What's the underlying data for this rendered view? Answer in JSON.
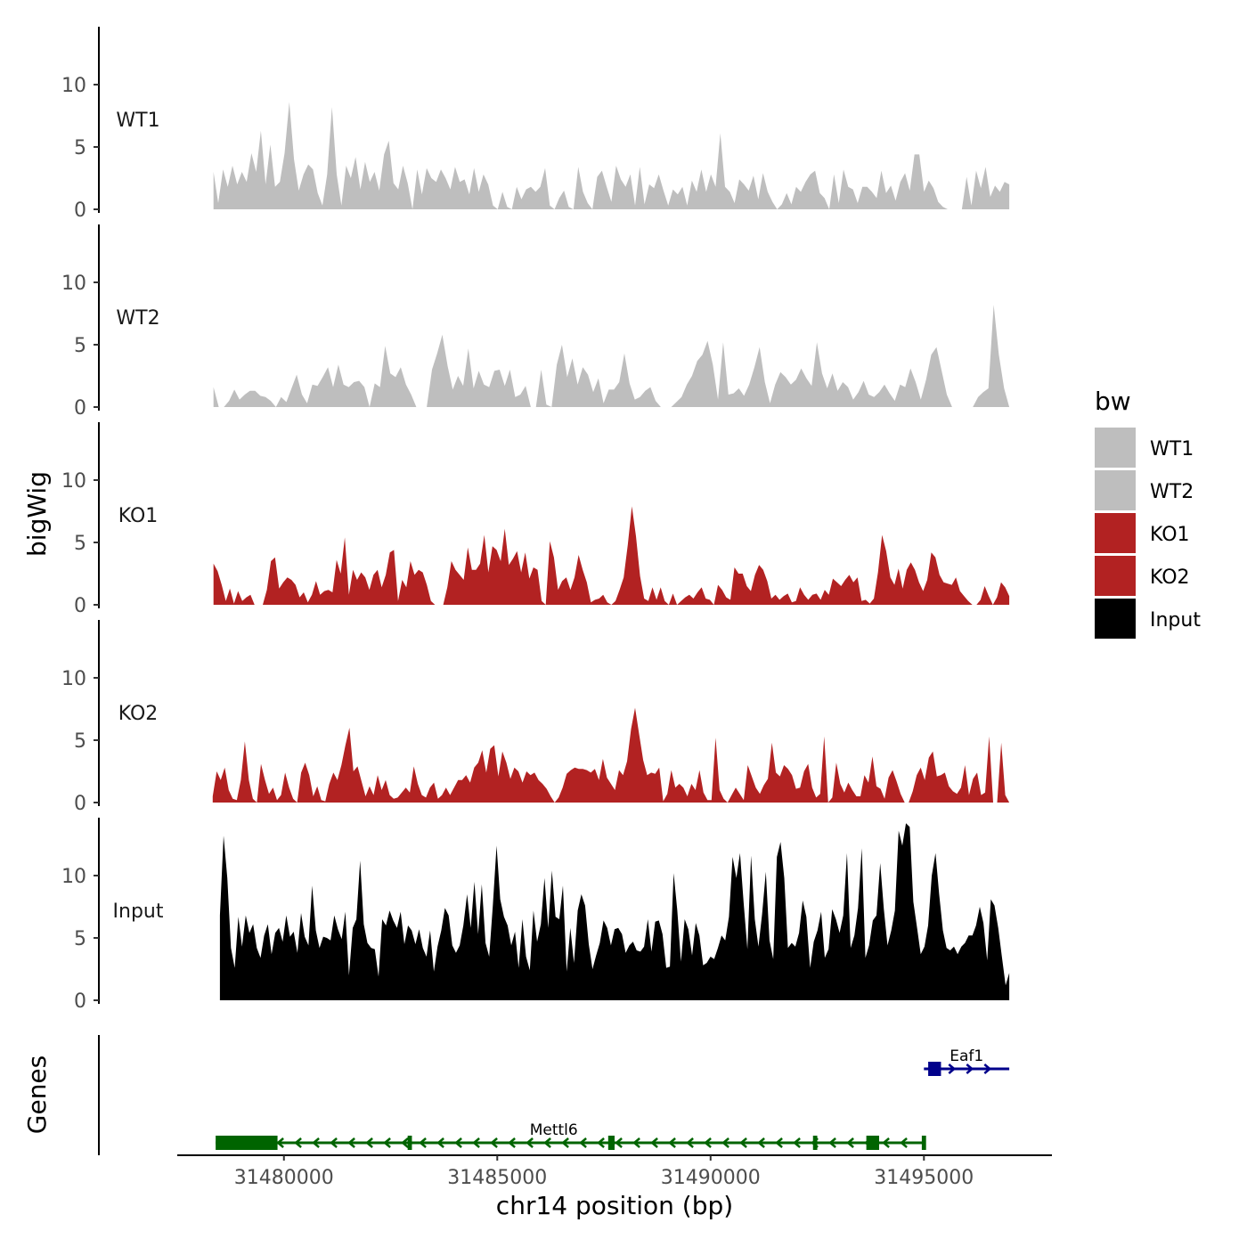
{
  "chart_data": {
    "type": "area",
    "xlabel": "chr14 position (bp)",
    "ylabel": "bigWig",
    "gene_panel_label": "Genes",
    "xlim": [
      31477500,
      31498000
    ],
    "x_ticks": [
      31480000,
      31485000,
      31490000,
      31495000
    ],
    "x_tick_labels": [
      "31480000",
      "31485000",
      "31490000",
      "31495000"
    ],
    "ylim": [
      0,
      14.5
    ],
    "y_ticks": [
      0,
      5,
      10
    ],
    "y_tick_labels": [
      "0",
      "5",
      "10"
    ],
    "legend": {
      "title": "bw",
      "position": "right",
      "entries": [
        {
          "label": "WT1",
          "color": "#bebebe"
        },
        {
          "label": "WT2",
          "color": "#bebebe"
        },
        {
          "label": "KO1",
          "color": "#b22222"
        },
        {
          "label": "KO2",
          "color": "#b22222"
        },
        {
          "label": "Input",
          "color": "#000000"
        }
      ]
    },
    "tracks": [
      {
        "name": "WT1",
        "color": "#bebebe",
        "x_start": 31478350,
        "x_end": 31497000,
        "values": [
          3,
          0.5,
          3.2,
          1.8,
          3.5,
          2,
          3,
          2.2,
          4.5,
          3,
          6.3,
          2,
          5.2,
          1.8,
          2.2,
          4.5,
          8.6,
          4,
          1.5,
          2.8,
          3.6,
          3.2,
          1.3,
          0.3,
          2.8,
          8.2,
          2.8,
          0.3,
          3.5,
          2.5,
          4.2,
          1.6,
          3.8,
          2.2,
          3,
          1.5,
          4.4,
          5.5,
          2.1,
          1.6,
          3.5,
          2.1,
          0,
          3.2,
          1.2,
          3.3,
          2.5,
          2.2,
          3.2,
          2.5,
          1.6,
          3.4,
          2.2,
          2.4,
          1.2,
          3.3,
          1.4,
          2.8,
          2,
          0.3,
          0,
          1.4,
          0.2,
          0,
          1.8,
          0.8,
          1.6,
          1.8,
          1.4,
          1.8,
          3.3,
          0.3,
          0,
          0.9,
          1.5,
          0.2,
          0,
          3.4,
          1.4,
          0.5,
          0,
          2.6,
          3.1,
          1.8,
          0.6,
          3.5,
          2.4,
          1.8,
          2.8,
          0.3,
          3.4,
          0.4,
          2,
          1.7,
          2.8,
          1.5,
          0.3,
          1.6,
          1.2,
          1.8,
          0.3,
          2.3,
          1.4,
          3.2,
          1.4,
          2.8,
          1.8,
          6.1,
          1.8,
          1.4,
          0.5,
          2.4,
          2,
          1.5,
          2.7,
          0.8,
          2.9,
          1.4,
          0.6,
          0,
          0.4,
          1.3,
          0.4,
          1.8,
          1.4,
          2.2,
          2.8,
          3.1,
          1.3,
          0.9,
          0,
          2.8,
          0.5,
          3.2,
          1.8,
          1.6,
          0.5,
          1.8,
          1.8,
          1.4,
          0.9,
          3.1,
          1.3,
          1.9,
          0.7,
          2.2,
          2.9,
          1.5,
          4.4,
          4.4,
          1.4,
          2.3,
          1.7,
          0.6,
          0.2,
          0,
          0,
          0,
          0,
          2.6,
          0.3,
          3.1,
          1.7,
          3.4,
          1,
          1.9,
          1.4,
          2.2,
          2
        ]
      },
      {
        "name": "WT2",
        "color": "#bebebe",
        "x_start": 31478350,
        "x_end": 31497000,
        "values": [
          1.6,
          0,
          0,
          0.5,
          1.4,
          0.6,
          1,
          1.3,
          1.3,
          0.9,
          0.8,
          0.5,
          0,
          0.8,
          0.4,
          1.5,
          2.6,
          1,
          0.3,
          1.8,
          1.7,
          2.4,
          3.2,
          1.6,
          3.4,
          1.8,
          1.6,
          2,
          2.1,
          1.6,
          0,
          1.9,
          1.6,
          4.9,
          2.7,
          2.4,
          3.2,
          1.8,
          1,
          0,
          0,
          0,
          3,
          4.3,
          5.8,
          3.3,
          1.4,
          2.5,
          1.7,
          4.7,
          1.5,
          2.9,
          1.8,
          1.6,
          2.9,
          3,
          1.7,
          3,
          0.8,
          1,
          1.7,
          0,
          0,
          3,
          0.2,
          0,
          3.4,
          5,
          2.4,
          3.9,
          1.8,
          3.2,
          2.6,
          1.2,
          2.3,
          0.3,
          1.4,
          1.4,
          2,
          4.3,
          1.9,
          0.6,
          0.8,
          1.3,
          1.6,
          0.5,
          0,
          0,
          0,
          0.4,
          0.8,
          1.8,
          2.5,
          3.7,
          4.2,
          5.3,
          3.4,
          0.6,
          5.2,
          1,
          1.1,
          1.5,
          0.9,
          1.8,
          3.2,
          4.8,
          2,
          0.3,
          1.8,
          2.8,
          2.4,
          1.8,
          2.2,
          3.1,
          2.3,
          1.7,
          5.2,
          2.7,
          1.5,
          2.7,
          1.3,
          2,
          1.6,
          0.6,
          1.2,
          2.1,
          1,
          0.8,
          1.2,
          1.8,
          1.1,
          0.5,
          1.8,
          1.6,
          3.1,
          2,
          0.6,
          2.2,
          4.2,
          4.8,
          2.9,
          1,
          0,
          0,
          0,
          0,
          0,
          0.8,
          1.2,
          1.5,
          8.2,
          4.2,
          1.5,
          0
        ]
      },
      {
        "name": "KO1",
        "color": "#b22222",
        "x_start": 31478350,
        "x_end": 31497000,
        "values": [
          3.3,
          2.7,
          1.6,
          0.3,
          1.3,
          0.1,
          1.1,
          0.3,
          0.6,
          0.8,
          0,
          0,
          0,
          1.2,
          3.5,
          3.8,
          1.3,
          1.8,
          2.2,
          2,
          1.6,
          0.6,
          1,
          0.2,
          0.8,
          1.9,
          0.8,
          1.1,
          1.2,
          1,
          3.6,
          2.5,
          5.4,
          0.8,
          2.8,
          2,
          2.6,
          2.2,
          1.2,
          2.4,
          2.8,
          1.4,
          2.4,
          4.2,
          4.4,
          0.3,
          2,
          1.4,
          3.5,
          2.4,
          2.8,
          2.6,
          1.6,
          0.3,
          0,
          0,
          0,
          1.4,
          3.5,
          2.8,
          2.4,
          2,
          4.6,
          2.8,
          2.8,
          3.3,
          5.6,
          2.6,
          4.7,
          4.4,
          3.5,
          6.1,
          3.2,
          3.7,
          4.3,
          2.6,
          4.2,
          2.1,
          3,
          2.8,
          0.3,
          0,
          5.1,
          3.8,
          1.2,
          1.9,
          2.2,
          1.2,
          2.2,
          4,
          2.8,
          1.8,
          0.2,
          0.4,
          0.5,
          0.8,
          0.2,
          0,
          0.3,
          1.2,
          2.2,
          4.8,
          7.9,
          5.5,
          2.3,
          0.5,
          0.3,
          1.4,
          0.4,
          1.4,
          0.3,
          0,
          0.9,
          0,
          0.3,
          0.6,
          0.8,
          0.5,
          1,
          1.4,
          0.5,
          0.4,
          0,
          1.6,
          1.2,
          0.6,
          0.4,
          3,
          2.5,
          2.5,
          1.5,
          1.1,
          2.4,
          3.2,
          2.8,
          1.9,
          0.5,
          0.8,
          0.4,
          0.7,
          0.9,
          0.2,
          0.3,
          1.4,
          0.8,
          0.4,
          0.8,
          0.9,
          0.4,
          1.2,
          0.8,
          2.1,
          1.8,
          1.5,
          2,
          2.4,
          1.8,
          2.2,
          0.3,
          0.4,
          0.1,
          0.5,
          2.6,
          5.6,
          4.3,
          2.2,
          1.6,
          2.9,
          1.3,
          2.8,
          3.4,
          2.8,
          1.8,
          1.1,
          2,
          4.2,
          3.8,
          2.4,
          1.8,
          1.7,
          1.6,
          2.2,
          1.1,
          0.7,
          0.3,
          0,
          0,
          0.4,
          1.5,
          0.7,
          0,
          0.6,
          1.8,
          1.4,
          0.7
        ]
      },
      {
        "name": "KO2",
        "color": "#b22222",
        "x_start": 31478330,
        "x_end": 31497000,
        "values": [
          0.5,
          2.5,
          1.8,
          2.8,
          1,
          0.3,
          0.2,
          1.8,
          4.9,
          1.8,
          0.3,
          0,
          3.1,
          1.8,
          0.7,
          1.2,
          0.2,
          0.6,
          2.4,
          1.2,
          0.3,
          0,
          2.4,
          3.2,
          2.2,
          0.5,
          1.3,
          0.2,
          0.1,
          1.5,
          2.4,
          1.8,
          3,
          4.6,
          6,
          2.5,
          2.9,
          1.7,
          0.5,
          1.3,
          0.6,
          2.2,
          1,
          1.8,
          0.6,
          0.3,
          0.4,
          0.8,
          1.2,
          0.8,
          2.9,
          1.5,
          0.6,
          0.4,
          1.2,
          1.6,
          0.3,
          0.6,
          1.2,
          0.6,
          1.2,
          1.8,
          1.8,
          2.2,
          1.6,
          2.8,
          3.2,
          4.2,
          2.4,
          4.3,
          4.6,
          2.1,
          4.1,
          3.2,
          1.9,
          2.8,
          2.5,
          1.6,
          2.5,
          2.2,
          2.4,
          1.8,
          1.5,
          1.1,
          0.5,
          0,
          0.4,
          1.2,
          2.3,
          2.6,
          2.8,
          2.7,
          2.7,
          2.6,
          2.4,
          2.7,
          1.8,
          3.5,
          2,
          1.5,
          1,
          2.6,
          2.2,
          3.3,
          5.9,
          7.6,
          5.5,
          3.4,
          2.2,
          2.4,
          2.3,
          2.8,
          0.1,
          0.7,
          2.6,
          1.2,
          1.5,
          1.2,
          0.5,
          1.5,
          1,
          2.6,
          0.8,
          0.2,
          0.2,
          5.2,
          1,
          0.3,
          0,
          0.6,
          1.2,
          0.7,
          0.2,
          3,
          2.1,
          1.2,
          0.7,
          1.4,
          1.9,
          4.8,
          2.4,
          2.1,
          3,
          2.7,
          2.2,
          1.1,
          1.2,
          2.5,
          3.1,
          1.2,
          0.4,
          0.7,
          5.3,
          0,
          0.4,
          3.2,
          1.5,
          0.8,
          1.6,
          1,
          0.5,
          0.5,
          2.2,
          1.6,
          3.7,
          1.3,
          1.1,
          0.3,
          2,
          2.6,
          1.7,
          0.7,
          0,
          0,
          0.9,
          2.2,
          2.8,
          1.8,
          3.6,
          4.1,
          2.1,
          2.2,
          2.4,
          1.3,
          0.9,
          0.7,
          1.2,
          3,
          0.6,
          1.9,
          2.4,
          0.6,
          0.8,
          5.3,
          0,
          0,
          4.8,
          0.6,
          0
        ]
      },
      {
        "name": "Input",
        "color": "#000000",
        "x_start": 31478500,
        "x_end": 31497000,
        "values": [
          6.8,
          13.2,
          9.8,
          4.2,
          2.6,
          6.7,
          4.3,
          6.8,
          5.4,
          6.1,
          4.2,
          3.4,
          5.2,
          6.1,
          3.7,
          5.4,
          5.8,
          4.7,
          6.8,
          5.1,
          5.5,
          3.8,
          7,
          5.1,
          4.4,
          9.2,
          5.6,
          4.2,
          5.1,
          5,
          4.8,
          6.8,
          5.7,
          4.9,
          7.1,
          2,
          5.8,
          6.5,
          11.2,
          6.1,
          4.6,
          4.2,
          4.1,
          1.9,
          6.5,
          6,
          7.2,
          6.4,
          5.8,
          7.1,
          4.5,
          6,
          5.6,
          4.5,
          5.7,
          4.2,
          3.5,
          5.6,
          2.3,
          4.3,
          5.6,
          7.4,
          6.8,
          4.4,
          3.8,
          4.4,
          6,
          8.5,
          5.8,
          9.5,
          5.3,
          9.3,
          4.6,
          3.5,
          7.6,
          12.4,
          8.1,
          6.7,
          6,
          4.4,
          5.5,
          2.6,
          6.5,
          3.5,
          2.4,
          7.2,
          4.7,
          6.1,
          9.8,
          5.8,
          10.4,
          6.7,
          6.5,
          9.2,
          2.3,
          5.8,
          3,
          7.2,
          8.5,
          7.6,
          4.5,
          2.5,
          3.6,
          4.6,
          6.4,
          5.8,
          4.4,
          5.7,
          5.8,
          5.3,
          3.8,
          4.4,
          4.7,
          4,
          3.9,
          4.3,
          6.5,
          3.9,
          6.3,
          6.4,
          5.3,
          2.6,
          2.7,
          10.2,
          7.2,
          3.1,
          6.5,
          5.7,
          3.6,
          6.2,
          5.2,
          2.8,
          3,
          3.5,
          3.3,
          4.2,
          5.2,
          4.8,
          6.7,
          11.5,
          9.8,
          11.8,
          7.8,
          4.1,
          11.6,
          6.5,
          4.3,
          6.9,
          10.3,
          4.8,
          3.3,
          11.5,
          12.7,
          9.8,
          4.2,
          4.6,
          4.3,
          5.4,
          8,
          6.7,
          2.6,
          4.7,
          5.6,
          7.1,
          3.4,
          4.1,
          7.3,
          6.5,
          5.4,
          6.8,
          11.8,
          4.2,
          5.2,
          7.4,
          12.2,
          3.4,
          4.4,
          6.4,
          6.8,
          11,
          7.3,
          4.4,
          5.6,
          7.2,
          13.6,
          12.4,
          14.2,
          13.9,
          7.9,
          5.8,
          3.7,
          4.3,
          6,
          10,
          11.8,
          8.5,
          5.6,
          4.2,
          4,
          4.3,
          3.7,
          4.3,
          4.6,
          5.2,
          5.2,
          6,
          7.5,
          6.2,
          3.2,
          8.1,
          7.6,
          5.8,
          3.5,
          1.2,
          2.2
        ]
      }
    ],
    "genes": [
      {
        "name": "Mettl6",
        "strand": "-",
        "color": "#006400",
        "start": 31478400,
        "end": 31495000,
        "exons": [
          [
            31478400,
            31479850
          ],
          [
            31482900,
            31483000
          ],
          [
            31487600,
            31487750
          ],
          [
            31492400,
            31492500
          ],
          [
            31493650,
            31493950
          ],
          [
            31494950,
            31495050
          ]
        ]
      },
      {
        "name": "Eaf1",
        "strand": "+",
        "color": "#00008b",
        "start": 31495000,
        "end": 31497000,
        "exons": [
          [
            31495100,
            31495400
          ]
        ]
      }
    ]
  }
}
